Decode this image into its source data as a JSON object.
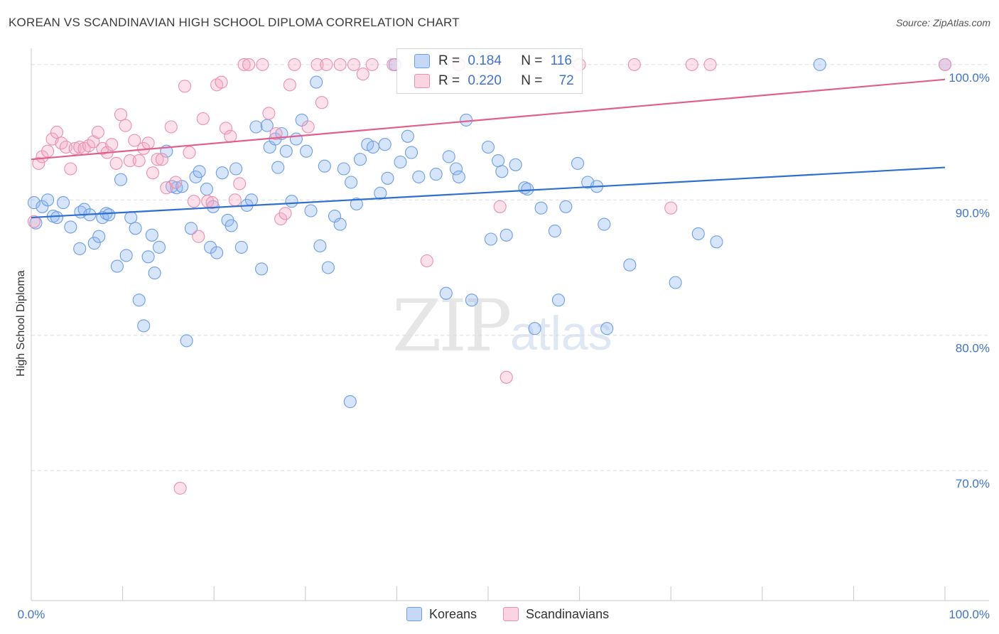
{
  "title": "KOREAN VS SCANDINAVIAN HIGH SCHOOL DIPLOMA CORRELATION CHART",
  "source": "Source: ZipAtlas.com",
  "watermark": {
    "zip": "ZIP",
    "atlas": "atlas"
  },
  "colors": {
    "koreans": "#6c9ee6",
    "koreans_fill": "rgba(140,180,240,0.35)",
    "koreans_line": "#2f6fd0",
    "scandinavians": "#ea8fae",
    "scandinavians_fill": "rgba(245,170,195,0.35)",
    "scandinavians_line": "#e0608c",
    "tick_label": "#3f73c9"
  },
  "legend": {
    "rows": [
      {
        "r_label": "R =",
        "r_value": "0.184",
        "n_label": "N =",
        "n_value": "116"
      },
      {
        "r_label": "R =",
        "r_value": "0.220",
        "n_label": "N =",
        "n_value": "72"
      }
    ]
  },
  "bottom_legend": {
    "koreans": "Koreans",
    "scandinavians": "Scandinavians"
  },
  "chart_data": {
    "type": "scatter",
    "ylabel": "High School Diploma",
    "xlim": [
      0,
      100
    ],
    "ylim": [
      60.4,
      101.2
    ],
    "x_tick_labels": [
      "0.0%",
      "100.0%"
    ],
    "y_ticks": [
      {
        "value": 70,
        "label": "70.0%"
      },
      {
        "value": 80,
        "label": "80.0%"
      },
      {
        "value": 90,
        "label": "90.0%"
      },
      {
        "value": 100,
        "label": "100.0%"
      }
    ],
    "grid": "horizontal dashed",
    "series": [
      {
        "name": "Koreans",
        "trend": [
          [
            0,
            88.7
          ],
          [
            100,
            92.4
          ]
        ],
        "points": [
          [
            0.3,
            89.8
          ],
          [
            0.5,
            88.3
          ],
          [
            1.2,
            89.5
          ],
          [
            1.8,
            90.0
          ],
          [
            2.4,
            88.8
          ],
          [
            2.8,
            88.7
          ],
          [
            3.5,
            89.8
          ],
          [
            4.3,
            88.0
          ],
          [
            5.3,
            86.4
          ],
          [
            5.4,
            89.1
          ],
          [
            5.8,
            89.3
          ],
          [
            6.4,
            88.9
          ],
          [
            6.9,
            86.8
          ],
          [
            7.4,
            87.3
          ],
          [
            7.8,
            88.7
          ],
          [
            8.2,
            89.0
          ],
          [
            8.5,
            88.9
          ],
          [
            9.4,
            85.1
          ],
          [
            9.8,
            91.5
          ],
          [
            10.4,
            85.9
          ],
          [
            10.9,
            88.7
          ],
          [
            11.4,
            87.9
          ],
          [
            11.8,
            82.6
          ],
          [
            12.3,
            80.7
          ],
          [
            12.8,
            85.8
          ],
          [
            13.2,
            87.4
          ],
          [
            13.5,
            84.6
          ],
          [
            14.0,
            86.5
          ],
          [
            14.8,
            93.6
          ],
          [
            15.4,
            91.0
          ],
          [
            15.9,
            90.9
          ],
          [
            16.5,
            91.0
          ],
          [
            17.0,
            79.6
          ],
          [
            17.5,
            87.9
          ],
          [
            18.0,
            91.7
          ],
          [
            18.4,
            92.1
          ],
          [
            19.2,
            90.8
          ],
          [
            19.6,
            86.5
          ],
          [
            19.9,
            89.5
          ],
          [
            20.3,
            86.1
          ],
          [
            20.9,
            92.0
          ],
          [
            21.5,
            88.5
          ],
          [
            21.9,
            88.1
          ],
          [
            22.4,
            92.3
          ],
          [
            23.0,
            86.5
          ],
          [
            23.6,
            89.6
          ],
          [
            24.1,
            90.0
          ],
          [
            24.6,
            95.4
          ],
          [
            25.2,
            84.9
          ],
          [
            25.8,
            95.5
          ],
          [
            26.1,
            93.9
          ],
          [
            26.7,
            94.5
          ],
          [
            27.0,
            92.4
          ],
          [
            27.4,
            94.9
          ],
          [
            27.9,
            93.6
          ],
          [
            28.5,
            89.9
          ],
          [
            29.0,
            94.5
          ],
          [
            29.6,
            95.9
          ],
          [
            30.1,
            93.6
          ],
          [
            30.6,
            89.2
          ],
          [
            31.2,
            98.7
          ],
          [
            31.6,
            86.6
          ],
          [
            32.1,
            92.5
          ],
          [
            32.5,
            85.0
          ],
          [
            33.2,
            88.8
          ],
          [
            33.8,
            88.2
          ],
          [
            34.2,
            92.3
          ],
          [
            35.0,
            91.3
          ],
          [
            35.6,
            89.7
          ],
          [
            36.0,
            93.0
          ],
          [
            36.8,
            94.1
          ],
          [
            37.4,
            93.9
          ],
          [
            38.2,
            90.5
          ],
          [
            38.7,
            94.1
          ],
          [
            39.0,
            91.6
          ],
          [
            39.8,
            100.0
          ],
          [
            40.4,
            92.8
          ],
          [
            41.2,
            94.7
          ],
          [
            41.6,
            93.5
          ],
          [
            42.4,
            91.7
          ],
          [
            44.3,
            91.9
          ],
          [
            45.4,
            83.1
          ],
          [
            45.7,
            93.2
          ],
          [
            46.5,
            92.3
          ],
          [
            46.8,
            91.7
          ],
          [
            47.6,
            95.9
          ],
          [
            48.2,
            82.6
          ],
          [
            50.0,
            93.9
          ],
          [
            50.3,
            87.1
          ],
          [
            51.1,
            92.9
          ],
          [
            51.5,
            92.1
          ],
          [
            52.0,
            87.4
          ],
          [
            53.0,
            92.6
          ],
          [
            54.0,
            90.9
          ],
          [
            54.3,
            90.8
          ],
          [
            55.1,
            80.5
          ],
          [
            55.8,
            89.4
          ],
          [
            57.3,
            87.7
          ],
          [
            57.7,
            82.6
          ],
          [
            58.5,
            89.5
          ],
          [
            59.8,
            92.7
          ],
          [
            60.9,
            91.3
          ],
          [
            61.9,
            91.0
          ],
          [
            62.7,
            88.2
          ],
          [
            63.0,
            80.5
          ],
          [
            65.5,
            85.2
          ],
          [
            70.5,
            83.9
          ],
          [
            73.0,
            87.5
          ],
          [
            75.0,
            86.9
          ],
          [
            86.3,
            100.0
          ],
          [
            100.0,
            100.0
          ],
          [
            34.9,
            75.1
          ]
        ]
      },
      {
        "name": "Scandinavians",
        "trend": [
          [
            0,
            93.0
          ],
          [
            100,
            98.9
          ]
        ],
        "points": [
          [
            0.3,
            88.4
          ],
          [
            0.8,
            92.7
          ],
          [
            1.2,
            93.2
          ],
          [
            1.8,
            93.6
          ],
          [
            2.3,
            94.5
          ],
          [
            2.8,
            95.0
          ],
          [
            3.3,
            94.2
          ],
          [
            3.8,
            93.9
          ],
          [
            4.3,
            92.3
          ],
          [
            4.8,
            93.8
          ],
          [
            5.3,
            93.9
          ],
          [
            5.8,
            93.8
          ],
          [
            6.3,
            94.0
          ],
          [
            6.8,
            94.3
          ],
          [
            7.3,
            95.0
          ],
          [
            7.8,
            93.8
          ],
          [
            8.3,
            93.5
          ],
          [
            8.8,
            94.1
          ],
          [
            9.3,
            92.7
          ],
          [
            9.8,
            96.3
          ],
          [
            10.3,
            95.5
          ],
          [
            10.8,
            92.9
          ],
          [
            11.3,
            94.4
          ],
          [
            11.8,
            92.9
          ],
          [
            12.3,
            93.8
          ],
          [
            12.8,
            94.2
          ],
          [
            13.3,
            92.0
          ],
          [
            13.8,
            93.0
          ],
          [
            14.3,
            93.0
          ],
          [
            14.8,
            90.9
          ],
          [
            15.3,
            95.4
          ],
          [
            15.8,
            91.3
          ],
          [
            16.3,
            68.7
          ],
          [
            16.8,
            98.4
          ],
          [
            17.3,
            93.5
          ],
          [
            17.8,
            89.9
          ],
          [
            18.3,
            87.3
          ],
          [
            18.8,
            96.0
          ],
          [
            19.3,
            89.9
          ],
          [
            19.8,
            89.8
          ],
          [
            20.3,
            98.5
          ],
          [
            20.8,
            98.7
          ],
          [
            21.3,
            95.3
          ],
          [
            21.8,
            94.7
          ],
          [
            22.3,
            90.0
          ],
          [
            22.8,
            91.2
          ],
          [
            23.3,
            100.0
          ],
          [
            23.8,
            100.0
          ],
          [
            25.3,
            100.0
          ],
          [
            26.0,
            96.4
          ],
          [
            26.8,
            94.9
          ],
          [
            27.3,
            88.6
          ],
          [
            27.8,
            89.0
          ],
          [
            28.3,
            98.5
          ],
          [
            28.8,
            100.0
          ],
          [
            30.3,
            95.4
          ],
          [
            31.3,
            100.0
          ],
          [
            31.8,
            97.2
          ],
          [
            32.3,
            100.0
          ],
          [
            33.8,
            100.0
          ],
          [
            35.3,
            100.0
          ],
          [
            36.3,
            99.3
          ],
          [
            37.3,
            100.0
          ],
          [
            39.6,
            100.0
          ],
          [
            43.3,
            85.5
          ],
          [
            46.8,
            100.0
          ],
          [
            51.3,
            89.5
          ],
          [
            52.0,
            76.9
          ],
          [
            66.0,
            100.0
          ],
          [
            70.0,
            89.4
          ],
          [
            72.3,
            100.0
          ],
          [
            74.3,
            100.0
          ],
          [
            100.0,
            100.0
          ],
          [
            50.5,
            100.0
          ],
          [
            60.0,
            100.0
          ]
        ]
      }
    ]
  }
}
